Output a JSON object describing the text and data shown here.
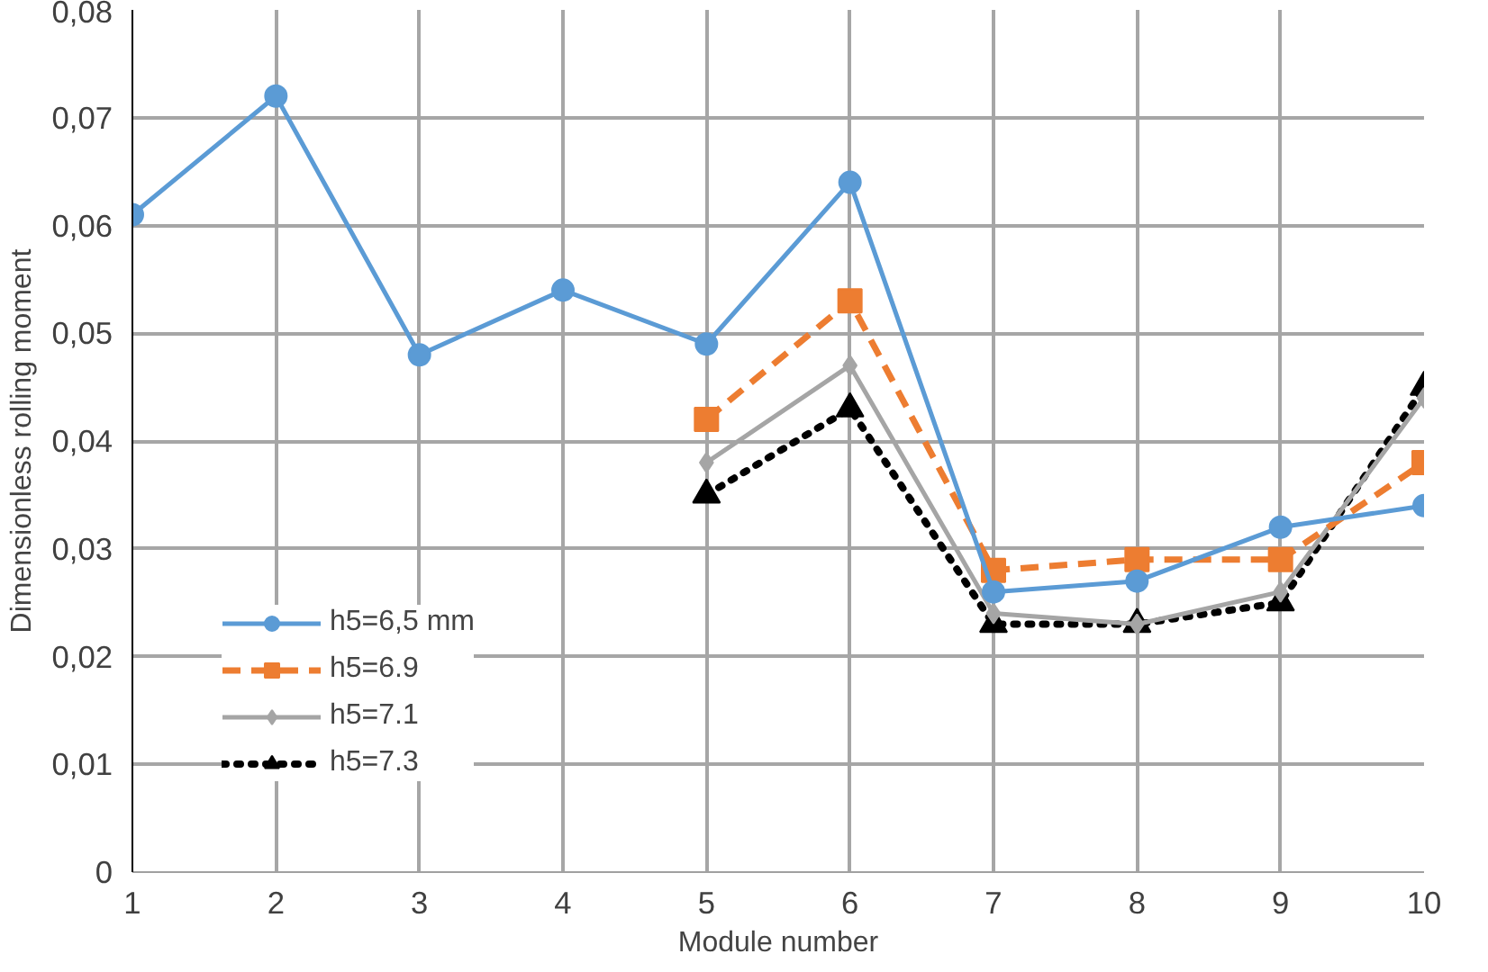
{
  "chart_data": {
    "type": "line",
    "xlabel": "Module number",
    "ylabel": "Dimensionless rolling moment",
    "x": [
      1,
      2,
      3,
      4,
      5,
      6,
      7,
      8,
      9,
      10
    ],
    "xlim": [
      1,
      10
    ],
    "xticks": [
      1,
      2,
      3,
      4,
      5,
      6,
      7,
      8,
      9,
      10
    ],
    "ylim": [
      0,
      0.08
    ],
    "yticks": [
      0,
      {
        "value": 0.01,
        "label": "0,01"
      },
      {
        "value": 0.02,
        "label": "0,02"
      },
      {
        "value": 0.03,
        "label": "0,03"
      },
      {
        "value": 0.04,
        "label": "0,04"
      },
      {
        "value": 0.05,
        "label": "0,05"
      },
      {
        "value": 0.06,
        "label": "0,06"
      },
      {
        "value": 0.07,
        "label": "0,07"
      },
      {
        "value": 0.08,
        "label": "0,08"
      }
    ],
    "grid": true,
    "legend": "bottom left",
    "series": [
      {
        "name": "h5=6,5 mm",
        "color": "#5b9bd5",
        "marker": "circle",
        "line_style": "solid",
        "values": [
          0.061,
          0.072,
          0.048,
          0.054,
          0.049,
          0.064,
          0.026,
          0.027,
          0.032,
          0.034
        ]
      },
      {
        "name": "h5=6.9",
        "color": "#ed7d31",
        "marker": "square",
        "line_style": "dashed",
        "values": [
          null,
          null,
          null,
          null,
          0.042,
          0.053,
          0.028,
          0.029,
          0.029,
          0.038
        ]
      },
      {
        "name": "h5=7.1",
        "color": "#a5a5a5",
        "marker": "diamond",
        "line_style": "solid",
        "values": [
          null,
          null,
          null,
          null,
          0.038,
          0.047,
          0.024,
          0.023,
          0.026,
          0.044
        ]
      },
      {
        "name": "h5=7.3",
        "color": "#000000",
        "marker": "triangle",
        "line_style": "dotted",
        "values": [
          null,
          null,
          null,
          null,
          0.035,
          0.043,
          0.023,
          0.023,
          0.025,
          0.045
        ]
      }
    ]
  }
}
